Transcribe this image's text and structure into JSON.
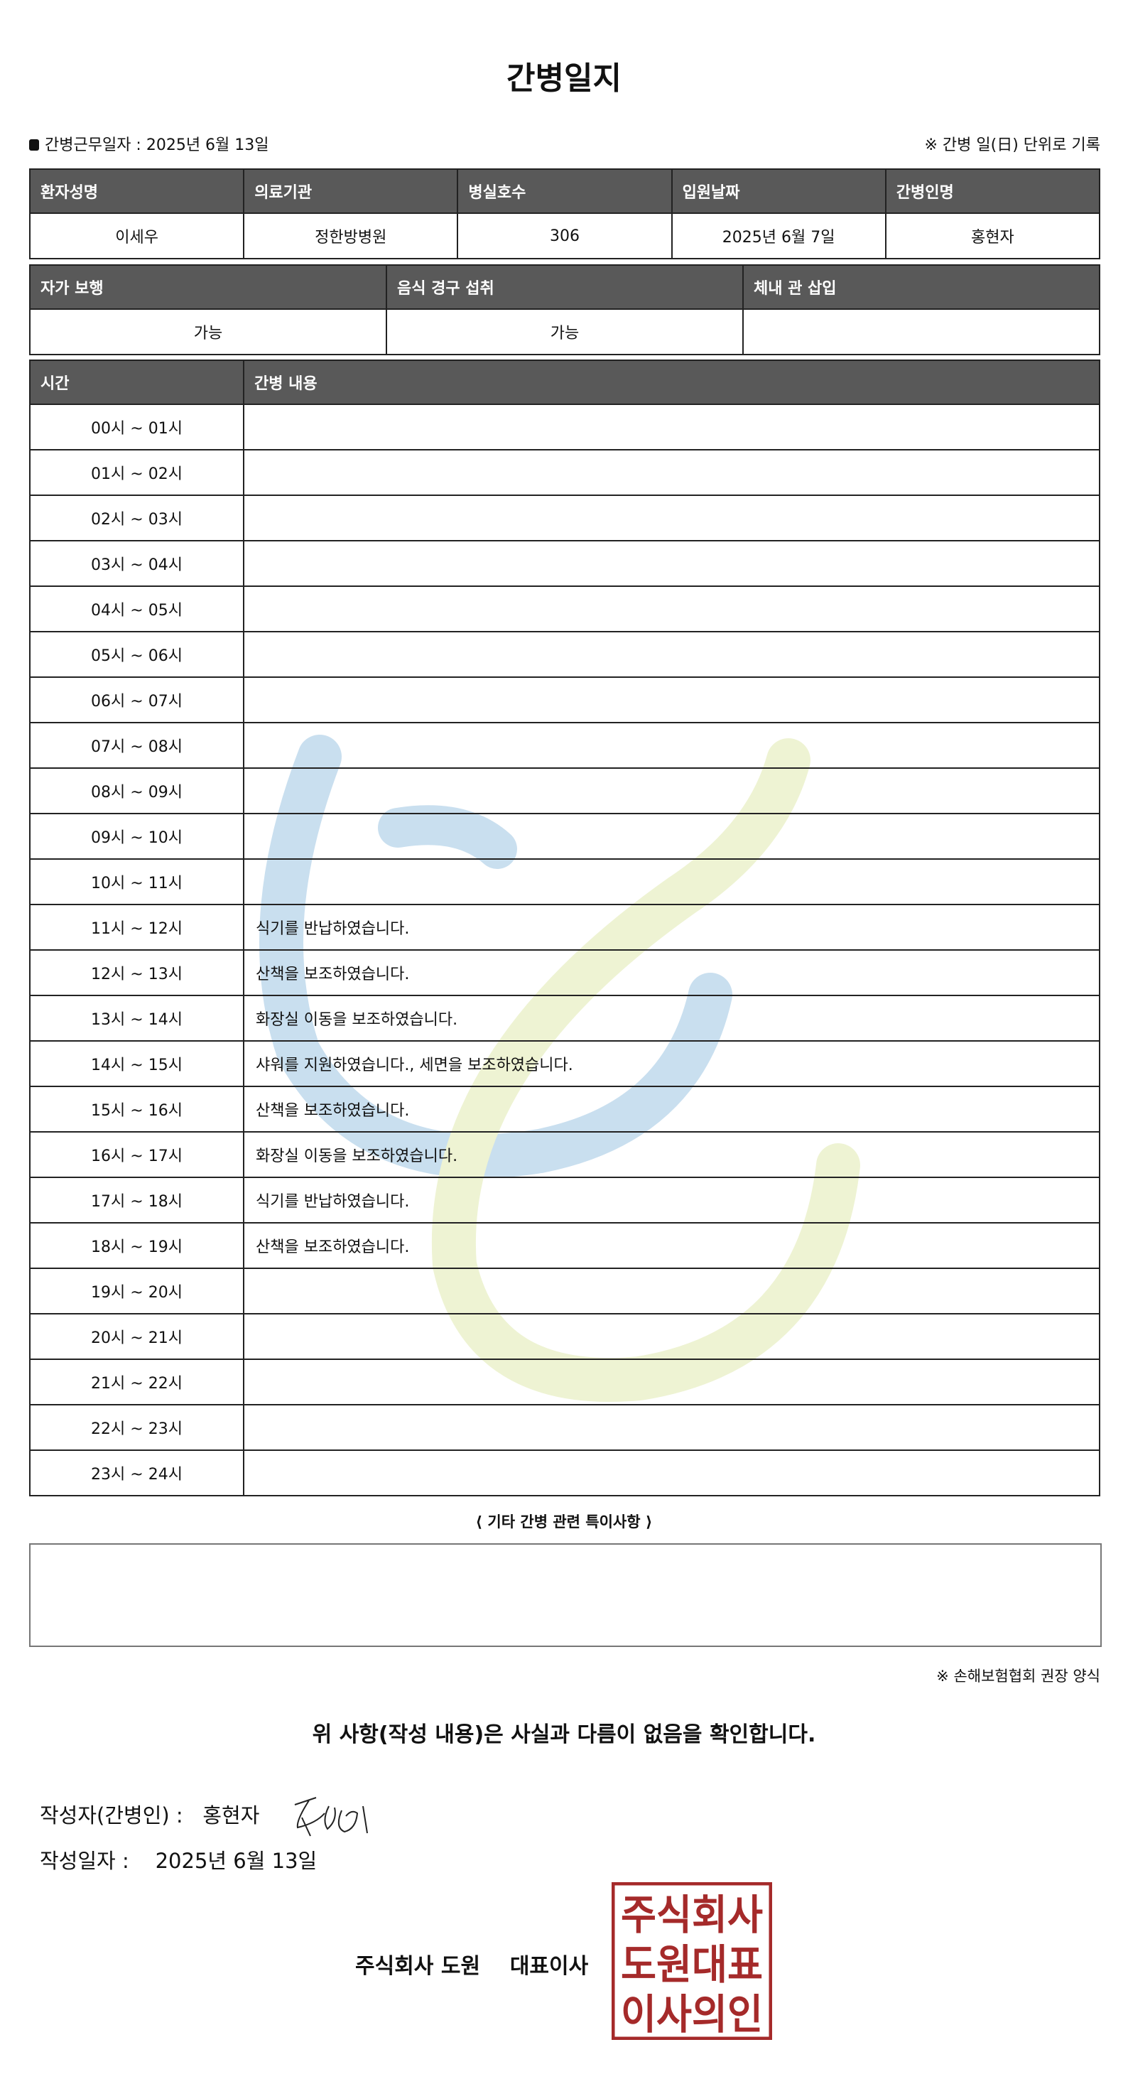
{
  "title": "간병일지",
  "work_date_label": "간병근무일자  :   2025년 6월 13일",
  "record_note": "※ 간병 일(日) 단위로 기록",
  "info_table": {
    "headers": [
      "환자성명",
      "의료기관",
      "병실호수",
      "입원날짜",
      "간병인명"
    ],
    "values": [
      "이세우",
      "정한방병원",
      "306",
      "2025년 6월 7일",
      "홍현자"
    ]
  },
  "status_table": {
    "headers": [
      "자가 보행",
      "음식 경구 섭취",
      "체내 관 삽입"
    ],
    "values": [
      "가능",
      "가능",
      ""
    ]
  },
  "log_table": {
    "headers": [
      "시간",
      "간병 내용"
    ],
    "rows": [
      {
        "time": "00시 ~ 01시",
        "content": ""
      },
      {
        "time": "01시 ~ 02시",
        "content": ""
      },
      {
        "time": "02시 ~ 03시",
        "content": ""
      },
      {
        "time": "03시 ~ 04시",
        "content": ""
      },
      {
        "time": "04시 ~ 05시",
        "content": ""
      },
      {
        "time": "05시 ~ 06시",
        "content": ""
      },
      {
        "time": "06시 ~ 07시",
        "content": ""
      },
      {
        "time": "07시 ~ 08시",
        "content": ""
      },
      {
        "time": "08시 ~ 09시",
        "content": ""
      },
      {
        "time": "09시 ~ 10시",
        "content": ""
      },
      {
        "time": "10시 ~ 11시",
        "content": ""
      },
      {
        "time": "11시 ~ 12시",
        "content": "식기를 반납하였습니다."
      },
      {
        "time": "12시 ~ 13시",
        "content": "산책을 보조하였습니다."
      },
      {
        "time": "13시 ~ 14시",
        "content": "화장실 이동을 보조하였습니다."
      },
      {
        "time": "14시 ~ 15시",
        "content": "샤워를 지원하였습니다., 세면을 보조하였습니다."
      },
      {
        "time": "15시 ~ 16시",
        "content": "산책을 보조하였습니다."
      },
      {
        "time": "16시 ~ 17시",
        "content": "화장실 이동을 보조하였습니다."
      },
      {
        "time": "17시 ~ 18시",
        "content": "식기를 반납하였습니다."
      },
      {
        "time": "18시 ~ 19시",
        "content": "산책을 보조하였습니다."
      },
      {
        "time": "19시 ~ 20시",
        "content": ""
      },
      {
        "time": "20시 ~ 21시",
        "content": ""
      },
      {
        "time": "21시 ~ 22시",
        "content": ""
      },
      {
        "time": "22시 ~ 23시",
        "content": ""
      },
      {
        "time": "23시 ~ 24시",
        "content": ""
      }
    ]
  },
  "special_notes": {
    "title": "⟨ 기타 간병 관련 특이사항 ⟩",
    "content": ""
  },
  "form_note": "※ 손해보험협회 권장 양식",
  "confirm_text": "위 사항(작성 내용)은 사실과 다름이 없음을 확인합니다.",
  "writer": {
    "label": "작성자(간병인) :",
    "name": "홍현자"
  },
  "written_date": {
    "label": "작성일자 :",
    "value": "2025년 6월 13일"
  },
  "company": {
    "name": "주식회사 도원",
    "role": "대표이사"
  },
  "stamp": {
    "text": [
      "주식회사",
      "도원대표",
      "이사의인"
    ],
    "color": "#a52a2a"
  },
  "colors": {
    "header_bg": "#595959",
    "watermark_blue": "#c9dfef",
    "watermark_green": "#eef3d3"
  }
}
